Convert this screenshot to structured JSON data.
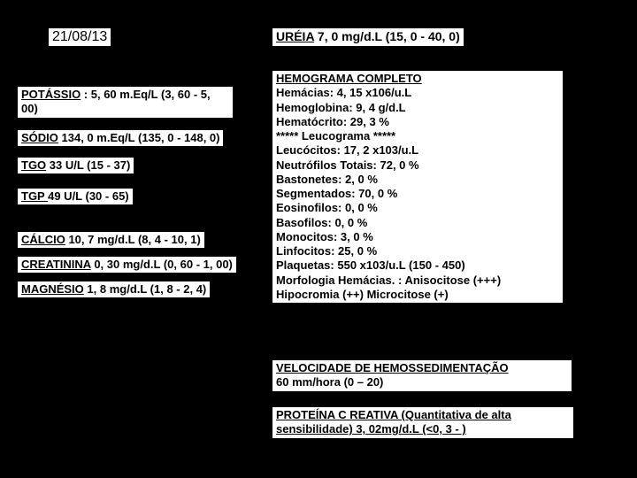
{
  "date": "21/08/13",
  "left": {
    "potassio": {
      "label": "POTÁSSIO",
      "sep": " : ",
      "value": "5, 60 m.Eq/L (3, 60 - 5, 00)"
    },
    "sodio": {
      "label": "SÓDIO",
      "value": " 134, 0 m.Eq/L (135, 0 - 148, 0)"
    },
    "tgo": {
      "label": "TGO",
      "value": " 33 U/L (15 - 37)"
    },
    "tgp": {
      "label": "TGP ",
      "value": " 49 U/L (30 - 65)"
    },
    "calcio": {
      "label": "CÁLCIO",
      "value": " 10, 7 mg/d.L (8, 4 - 10, 1)"
    },
    "creat": {
      "label": "CREATININA",
      "value": " 0, 30 mg/d.L (0, 60 - 1, 00)"
    },
    "mag": {
      "label": "MAGNÉSIO",
      "value": " 1, 8 mg/d.L (1, 8 - 2, 4)"
    }
  },
  "right": {
    "ureia": {
      "label": "URÉIA",
      "value": " 7, 0 mg/d.L (15, 0 - 40, 0)"
    },
    "hemograma": {
      "title": "HEMOGRAMA COMPLETO",
      "lines": [
        "Hemácias: 4, 15 x106/u.L",
        "Hemoglobina: 9, 4 g/d.L",
        "Hematócrito: 29, 3 %",
        "***** Leucograma *****",
        "Leucócitos: 17, 2 x103/u.L",
        "Neutrófilos Totais: 72, 0 %",
        "Bastonetes: 2, 0 %",
        "Segmentados: 70, 0 %",
        "Eosinofilos: 0, 0 %",
        "Basofilos: 0, 0 %",
        "Monocitos: 3, 0 %",
        "Linfocitos: 25, 0 %",
        "Plaquetas: 550 x103/u.L (150 - 450)",
        "Morfologia Hemácias. : Anisocitose (+++)",
        "Hipocromia (++) Microcitose (+)"
      ]
    },
    "vhs": {
      "title": "VELOCIDADE DE HEMOSSEDIMENTAÇÃO",
      "value": "60 mm/hora (0 – 20)"
    },
    "crp": {
      "title": "PROTEÍNA C REATIVA (Quantitativa de alta sensibilidade)",
      "value": " 3, 02mg/d.L (<0, 3 - )"
    }
  }
}
